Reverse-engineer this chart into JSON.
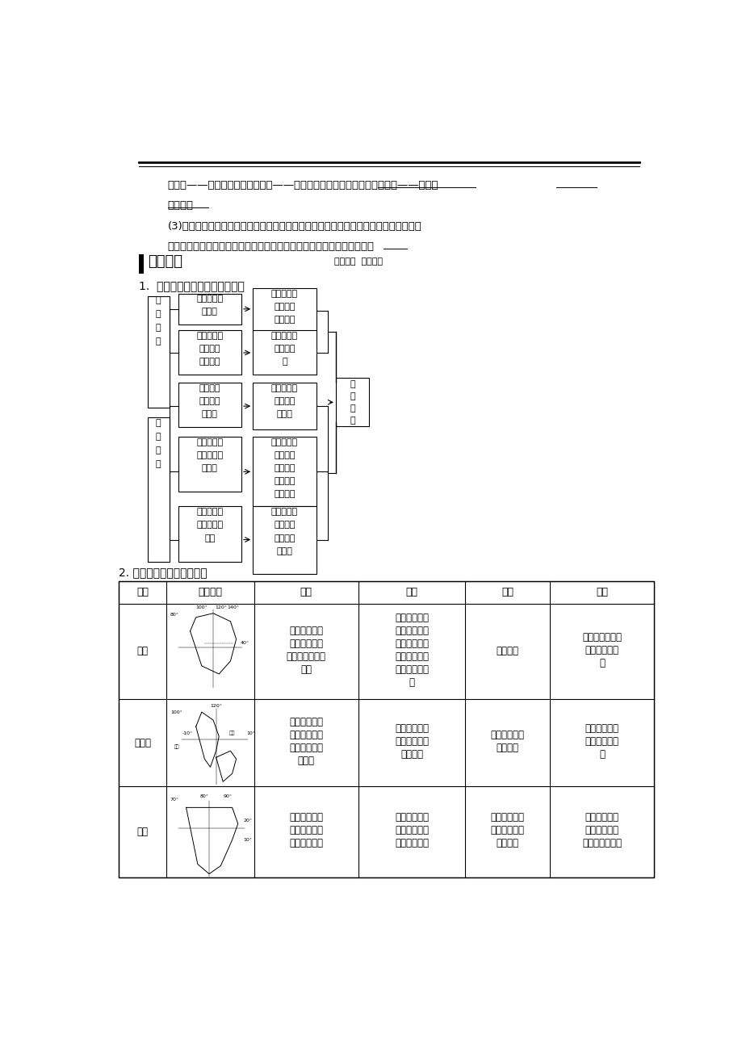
{
  "bg_color": "#ffffff",
  "page_width": 9.2,
  "page_height": 13.02,
  "paragraph1": "游地区——华夏文化、印度河流域——印度河流域文化、美索不达米亚平原——西河流",
  "paragraph1b": "域文化。",
  "paragraph2": "(3)经济发展差异：大部分属于发展中国家。其中东亚、东南亚的一些国家，如新加坡，",
  "paragraph2b": "经济发展较快；西亚一些国家，因大量出口石油，成为比较富裕的国家。",
  "section_title": "深化探究",
  "section_subtitle": "要点讲解  深层突破",
  "subsection1": "1.  亚洲地形、气候与河流的关系",
  "subsection2": "2. 亚洲主要分区的地理特征",
  "table_headers": [
    "区域",
    "位置范围",
    "地形",
    "气候",
    "居民",
    "经济"
  ]
}
